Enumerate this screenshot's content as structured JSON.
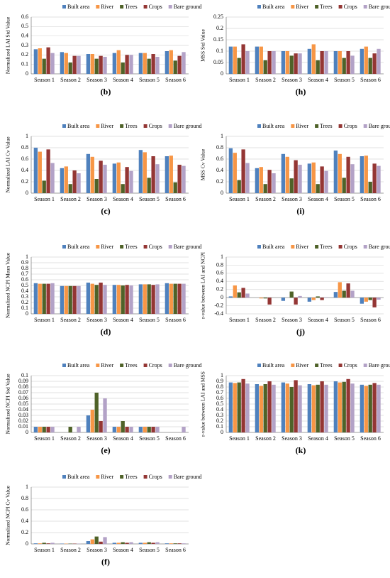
{
  "chart_data": [
    {
      "type": "bar",
      "panel_label": "(b)",
      "ylabel": "Normalized LAI Std Value",
      "categories": [
        "Season 1",
        "Season 2",
        "Season 3",
        "Season 4",
        "Season 5",
        "Season 6"
      ],
      "ylim": [
        0,
        0.6
      ],
      "yticks": [
        0,
        0.1,
        0.2,
        0.3,
        0.4,
        0.5,
        0.6
      ],
      "grid": true,
      "series": [
        {
          "name": "Built area",
          "color": "#4f81bd",
          "values": [
            0.26,
            0.23,
            0.21,
            0.22,
            0.22,
            0.24
          ]
        },
        {
          "name": "River",
          "color": "#f79646",
          "values": [
            0.27,
            0.22,
            0.21,
            0.25,
            0.22,
            0.25
          ]
        },
        {
          "name": "Trees",
          "color": "#4f6228",
          "values": [
            0.16,
            0.12,
            0.16,
            0.12,
            0.16,
            0.14
          ]
        },
        {
          "name": "Crops",
          "color": "#943634",
          "values": [
            0.28,
            0.19,
            0.19,
            0.2,
            0.21,
            0.19
          ]
        },
        {
          "name": "Bare ground",
          "color": "#b3a2c7",
          "values": [
            0.22,
            0.19,
            0.18,
            0.2,
            0.18,
            0.23
          ]
        }
      ]
    },
    {
      "type": "bar",
      "panel_label": "(h)",
      "ylabel": "MSS Std Value",
      "categories": [
        "Season 1",
        "Season 2",
        "Season 3",
        "Season 4",
        "Season 5",
        "Season 6"
      ],
      "ylim": [
        0,
        0.25
      ],
      "yticks": [
        0,
        0.05,
        0.1,
        0.15,
        0.2,
        0.25
      ],
      "grid": true,
      "series": [
        {
          "name": "Built area",
          "color": "#4f81bd",
          "values": [
            0.12,
            0.12,
            0.1,
            0.11,
            0.1,
            0.11
          ]
        },
        {
          "name": "River",
          "color": "#f79646",
          "values": [
            0.12,
            0.12,
            0.1,
            0.13,
            0.1,
            0.12
          ]
        },
        {
          "name": "Trees",
          "color": "#4f6228",
          "values": [
            0.07,
            0.06,
            0.08,
            0.06,
            0.07,
            0.07
          ]
        },
        {
          "name": "Crops",
          "color": "#943634",
          "values": [
            0.13,
            0.1,
            0.09,
            0.1,
            0.1,
            0.09
          ]
        },
        {
          "name": "Bare ground",
          "color": "#b3a2c7",
          "values": [
            0.1,
            0.1,
            0.09,
            0.1,
            0.08,
            0.11
          ]
        }
      ]
    },
    {
      "type": "bar",
      "panel_label": "(c)",
      "ylabel": "Normalized LAI Cv Value",
      "categories": [
        "Season 1",
        "Season 2",
        "Season 3",
        "Season 4",
        "Season 5",
        "Season 6"
      ],
      "ylim": [
        0,
        1
      ],
      "yticks": [
        0,
        0.2,
        0.4,
        0.6,
        0.8,
        1
      ],
      "grid": true,
      "series": [
        {
          "name": "Built area",
          "color": "#4f81bd",
          "values": [
            0.8,
            0.44,
            0.69,
            0.52,
            0.76,
            0.65
          ]
        },
        {
          "name": "River",
          "color": "#f79646",
          "values": [
            0.73,
            0.47,
            0.64,
            0.54,
            0.72,
            0.66
          ]
        },
        {
          "name": "Trees",
          "color": "#4f6228",
          "values": [
            0.22,
            0.16,
            0.25,
            0.16,
            0.27,
            0.19
          ]
        },
        {
          "name": "Crops",
          "color": "#943634",
          "values": [
            0.77,
            0.4,
            0.57,
            0.46,
            0.65,
            0.5
          ]
        },
        {
          "name": "Bare ground",
          "color": "#b3a2c7",
          "values": [
            0.53,
            0.35,
            0.5,
            0.39,
            0.51,
            0.48
          ]
        }
      ]
    },
    {
      "type": "bar",
      "panel_label": "(i)",
      "ylabel": "MSS Cv Value",
      "categories": [
        "Season 1",
        "Season 2",
        "Season 3",
        "Season 4",
        "Season 5",
        "Season 6"
      ],
      "ylim": [
        0,
        1
      ],
      "yticks": [
        0,
        0.2,
        0.4,
        0.6,
        0.8,
        1
      ],
      "grid": true,
      "series": [
        {
          "name": "Built area",
          "color": "#4f81bd",
          "values": [
            0.79,
            0.44,
            0.69,
            0.52,
            0.75,
            0.65
          ]
        },
        {
          "name": "River",
          "color": "#f79646",
          "values": [
            0.71,
            0.46,
            0.64,
            0.54,
            0.69,
            0.66
          ]
        },
        {
          "name": "Trees",
          "color": "#4f6228",
          "values": [
            0.23,
            0.16,
            0.26,
            0.16,
            0.27,
            0.2
          ]
        },
        {
          "name": "Crops",
          "color": "#943634",
          "values": [
            0.77,
            0.41,
            0.58,
            0.47,
            0.64,
            0.52
          ]
        },
        {
          "name": "Bare ground",
          "color": "#b3a2c7",
          "values": [
            0.53,
            0.35,
            0.5,
            0.39,
            0.51,
            0.48
          ]
        }
      ]
    },
    {
      "type": "bar",
      "panel_label": "(d)",
      "ylabel": "Normalized NCPI Mean Value",
      "categories": [
        "Season 1",
        "Season 2",
        "Season 3",
        "Season 4",
        "Season 5",
        "Season 6"
      ],
      "ylim": [
        0,
        1
      ],
      "yticks": [
        0,
        0.1,
        0.2,
        0.3,
        0.4,
        0.5,
        0.6,
        0.7,
        0.8,
        0.9,
        1
      ],
      "grid": true,
      "series": [
        {
          "name": "Built area",
          "color": "#4f81bd",
          "values": [
            0.54,
            0.49,
            0.55,
            0.51,
            0.52,
            0.54
          ]
        },
        {
          "name": "River",
          "color": "#f79646",
          "values": [
            0.53,
            0.49,
            0.53,
            0.51,
            0.52,
            0.53
          ]
        },
        {
          "name": "Trees",
          "color": "#4f6228",
          "values": [
            0.53,
            0.49,
            0.51,
            0.5,
            0.52,
            0.53
          ]
        },
        {
          "name": "Crops",
          "color": "#943634",
          "values": [
            0.53,
            0.49,
            0.55,
            0.51,
            0.51,
            0.53
          ]
        },
        {
          "name": "Bare ground",
          "color": "#b3a2c7",
          "values": [
            0.54,
            0.49,
            0.51,
            0.5,
            0.52,
            0.53
          ]
        }
      ]
    },
    {
      "type": "bar",
      "panel_label": "(j)",
      "ylabel": "r-value between LAI and NCPI",
      "categories": [
        "Season 1",
        "Season 2",
        "Season 3",
        "Season 4",
        "Season 5",
        "Season 6"
      ],
      "ylim": [
        -0.4,
        1
      ],
      "yticks": [
        -0.4,
        -0.2,
        0,
        0.2,
        0.4,
        0.6,
        0.8,
        1
      ],
      "grid": true,
      "series": [
        {
          "name": "Built area",
          "color": "#4f81bd",
          "values": [
            0.03,
            0,
            -0.08,
            -0.1,
            0.14,
            -0.15
          ]
        },
        {
          "name": "River",
          "color": "#f79646",
          "values": [
            0.3,
            -0.02,
            0,
            -0.06,
            0.38,
            -0.1
          ]
        },
        {
          "name": "Trees",
          "color": "#4f6228",
          "values": [
            0.13,
            -0.02,
            0.15,
            0.03,
            0.17,
            -0.06
          ]
        },
        {
          "name": "Crops",
          "color": "#943634",
          "values": [
            0.24,
            -0.17,
            -0.17,
            -0.06,
            0.35,
            -0.24
          ]
        },
        {
          "name": "Bare ground",
          "color": "#b3a2c7",
          "values": [
            0.1,
            0,
            0.04,
            0.01,
            0.17,
            -0.05
          ]
        }
      ]
    },
    {
      "type": "bar",
      "panel_label": "(e)",
      "ylabel": "Normalized NCPI Std Value",
      "categories": [
        "Season 1",
        "Season 2",
        "Season 3",
        "Season 4",
        "Season 5",
        "Season 6"
      ],
      "ylim": [
        0,
        0.1
      ],
      "yticks": [
        0,
        0.01,
        0.02,
        0.03,
        0.04,
        0.05,
        0.06,
        0.07,
        0.08,
        0.09,
        0.1
      ],
      "grid": true,
      "series": [
        {
          "name": "Built area",
          "color": "#4f81bd",
          "values": [
            0.01,
            0,
            0.03,
            0.01,
            0.01,
            0
          ]
        },
        {
          "name": "River",
          "color": "#f79646",
          "values": [
            0.01,
            0,
            0.04,
            0.01,
            0.01,
            0
          ]
        },
        {
          "name": "Trees",
          "color": "#4f6228",
          "values": [
            0.01,
            0.01,
            0.07,
            0.02,
            0.01,
            0
          ]
        },
        {
          "name": "Crops",
          "color": "#943634",
          "values": [
            0.01,
            0,
            0.02,
            0.01,
            0.01,
            0
          ]
        },
        {
          "name": "Bare ground",
          "color": "#b3a2c7",
          "values": [
            0.01,
            0.01,
            0.06,
            0.01,
            0.01,
            0.01
          ]
        }
      ]
    },
    {
      "type": "bar",
      "panel_label": "(k)",
      "ylabel": "r-value between LAI and MSS",
      "categories": [
        "Season 1",
        "Season 2",
        "Season 3",
        "Season 4",
        "Season 5",
        "Season 6"
      ],
      "ylim": [
        0,
        1
      ],
      "yticks": [
        0,
        0.1,
        0.2,
        0.3,
        0.4,
        0.5,
        0.6,
        0.7,
        0.8,
        0.9,
        1
      ],
      "grid": true,
      "series": [
        {
          "name": "Built area",
          "color": "#4f81bd",
          "values": [
            0.88,
            0.85,
            0.88,
            0.85,
            0.9,
            0.84
          ]
        },
        {
          "name": "River",
          "color": "#f79646",
          "values": [
            0.87,
            0.82,
            0.86,
            0.83,
            0.88,
            0.82
          ]
        },
        {
          "name": "Trees",
          "color": "#4f6228",
          "values": [
            0.88,
            0.85,
            0.8,
            0.84,
            0.89,
            0.84
          ]
        },
        {
          "name": "Crops",
          "color": "#943634",
          "values": [
            0.94,
            0.9,
            0.92,
            0.9,
            0.94,
            0.87
          ]
        },
        {
          "name": "Bare ground",
          "color": "#b3a2c7",
          "values": [
            0.86,
            0.84,
            0.83,
            0.84,
            0.86,
            0.84
          ]
        }
      ]
    },
    {
      "type": "bar",
      "panel_label": "(f)",
      "ylabel": "Normalized NCPI Cv Value",
      "categories": [
        "Season 1",
        "Season 2",
        "Season 3",
        "Season 4",
        "Season 5",
        "Season 6"
      ],
      "ylim": [
        0,
        1
      ],
      "yticks": [
        0,
        0.2,
        0.4,
        0.6,
        0.8,
        1
      ],
      "grid": true,
      "series": [
        {
          "name": "Built area",
          "color": "#4f81bd",
          "values": [
            0.01,
            0.005,
            0.05,
            0.02,
            0.02,
            0.01
          ]
        },
        {
          "name": "River",
          "color": "#f79646",
          "values": [
            0.01,
            0.005,
            0.08,
            0.02,
            0.02,
            0.01
          ]
        },
        {
          "name": "Trees",
          "color": "#4f6228",
          "values": [
            0.02,
            0.005,
            0.13,
            0.03,
            0.03,
            0.01
          ]
        },
        {
          "name": "Crops",
          "color": "#943634",
          "values": [
            0.01,
            0.005,
            0.04,
            0.02,
            0.02,
            0.01
          ]
        },
        {
          "name": "Bare ground",
          "color": "#b3a2c7",
          "values": [
            0.02,
            0.005,
            0.12,
            0.03,
            0.03,
            0.01
          ]
        }
      ]
    }
  ]
}
